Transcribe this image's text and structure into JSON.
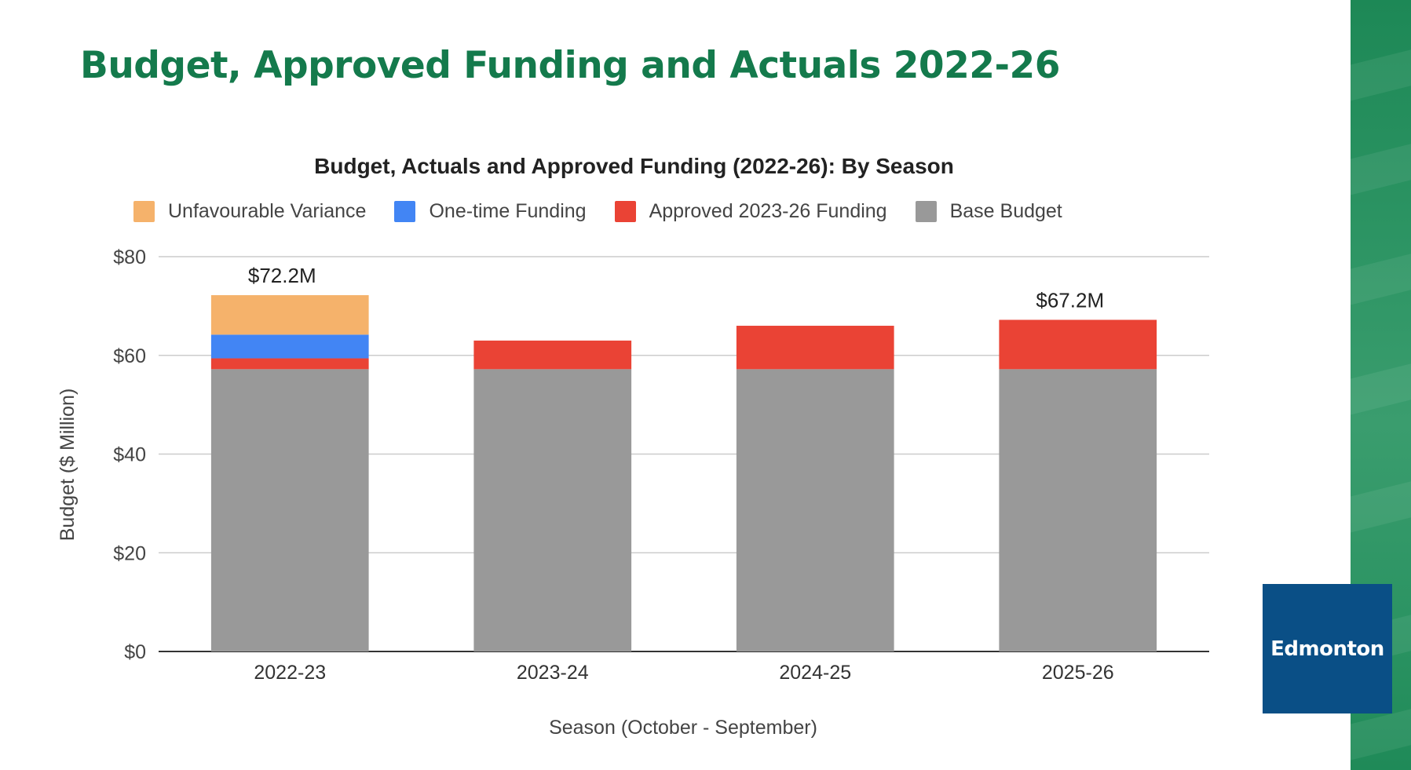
{
  "page": {
    "title": "Budget, Approved Funding and Actuals 2022-26"
  },
  "logo": {
    "text": "Edmonton"
  },
  "colors": {
    "title": "#147a4c",
    "unfavourable_variance": "#f5b26b",
    "one_time_funding": "#4285f4",
    "approved_funding": "#ea4335",
    "base_budget": "#999999",
    "logo_bg": "#0a4f86"
  },
  "chart_data": {
    "type": "bar",
    "stacked": true,
    "title": "Budget, Actuals and Approved Funding (2022-26): By Season",
    "xlabel": "Season (October - September)",
    "ylabel": "Budget ($ Million)",
    "ylim": [
      0,
      80
    ],
    "yticks": [
      "$0",
      "$20",
      "$40",
      "$60",
      "$80"
    ],
    "ytick_values": [
      0,
      20,
      40,
      60,
      80
    ],
    "categories": [
      "2022-23",
      "2023-24",
      "2024-25",
      "2025-26"
    ],
    "legend_position": "top",
    "series": [
      {
        "name": "Base Budget",
        "color": "#999999",
        "values": [
          57.2,
          57.2,
          57.2,
          57.2
        ]
      },
      {
        "name": "Approved 2023-26 Funding",
        "color": "#ea4335",
        "values": [
          2.2,
          5.8,
          8.8,
          10.0
        ]
      },
      {
        "name": "One-time Funding",
        "color": "#4285f4",
        "values": [
          4.8,
          0,
          0,
          0
        ]
      },
      {
        "name": "Unfavourable Variance",
        "color": "#f5b26b",
        "values": [
          8.0,
          0,
          0,
          0
        ]
      }
    ],
    "legend_order": [
      "Unfavourable Variance",
      "One-time Funding",
      "Approved 2023-26 Funding",
      "Base Budget"
    ],
    "annotations": [
      {
        "category": "2022-23",
        "text": "$72.2M",
        "value": 72.2
      },
      {
        "category": "2025-26",
        "text": "$67.2M",
        "value": 67.2
      }
    ]
  }
}
